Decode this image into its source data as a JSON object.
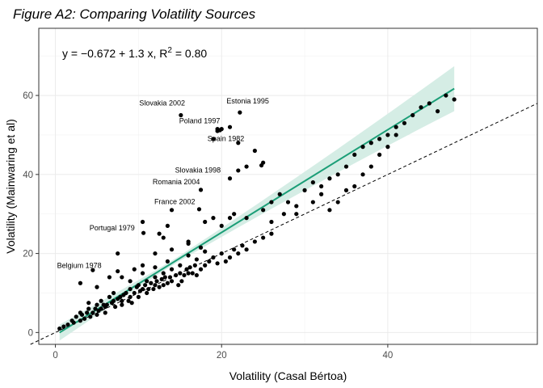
{
  "chart_data": {
    "type": "scatter",
    "title": "Figure A2: Comparing Volatility Sources",
    "xlabel": "Volatility (Casal Bértoa)",
    "ylabel": "Volatility (Mainwaring et al)",
    "xlim": [
      -2,
      58
    ],
    "ylim": [
      -3,
      77
    ],
    "xticks": [
      0,
      20,
      40
    ],
    "yticks": [
      0,
      20,
      40,
      60
    ],
    "grid": true,
    "equation": {
      "prefix": "y = −0.672 + 1.3 x, R",
      "sup": "2",
      "suffix": " = 0.80"
    },
    "regression": {
      "intercept": -0.672,
      "slope": 1.3,
      "x_range": [
        0.5,
        48
      ],
      "color": "#1b9e77",
      "band_color": "#d5ede5"
    },
    "reference_line": {
      "intercept": 0,
      "slope": 1,
      "style": "dashed",
      "color": "#000000"
    },
    "points": [
      [
        0.5,
        1
      ],
      [
        1,
        1.5
      ],
      [
        1.5,
        2
      ],
      [
        2,
        3
      ],
      [
        2.2,
        2.5
      ],
      [
        2.5,
        4
      ],
      [
        3,
        3
      ],
      [
        3,
        5
      ],
      [
        3.2,
        4.5
      ],
      [
        3.5,
        3.5
      ],
      [
        3.8,
        5
      ],
      [
        4,
        6
      ],
      [
        4,
        7.5
      ],
      [
        4.2,
        4
      ],
      [
        4.5,
        5
      ],
      [
        4.8,
        6
      ],
      [
        5,
        4.5
      ],
      [
        5,
        7
      ],
      [
        5.2,
        5.5
      ],
      [
        5.5,
        6
      ],
      [
        5.5,
        8
      ],
      [
        5.8,
        7
      ],
      [
        6,
        6.5
      ],
      [
        6,
        5
      ],
      [
        6.2,
        7
      ],
      [
        6.5,
        9
      ],
      [
        6.8,
        7.5
      ],
      [
        7,
        8
      ],
      [
        7,
        10
      ],
      [
        7.2,
        6.5
      ],
      [
        7.5,
        8.5
      ],
      [
        7.8,
        9
      ],
      [
        8,
        7
      ],
      [
        8,
        8
      ],
      [
        8.2,
        9.5
      ],
      [
        8.5,
        10
      ],
      [
        8.8,
        8
      ],
      [
        9,
        11
      ],
      [
        9,
        9
      ],
      [
        9.2,
        7.5
      ],
      [
        9.5,
        10
      ],
      [
        9.8,
        11.5
      ],
      [
        10,
        12
      ],
      [
        10,
        9
      ],
      [
        10.2,
        10.5
      ],
      [
        10.5,
        11
      ],
      [
        10.8,
        12
      ],
      [
        11,
        10
      ],
      [
        11,
        13
      ],
      [
        11.2,
        11
      ],
      [
        11.5,
        12.5
      ],
      [
        11.8,
        11
      ],
      [
        12,
        14
      ],
      [
        12,
        12
      ],
      [
        12.2,
        13
      ],
      [
        12.5,
        11.5
      ],
      [
        12.8,
        13.5
      ],
      [
        13,
        12
      ],
      [
        13,
        15
      ],
      [
        13.2,
        14
      ],
      [
        13.5,
        12.5
      ],
      [
        13.8,
        14
      ],
      [
        14,
        13
      ],
      [
        14,
        16
      ],
      [
        14.5,
        14.5
      ],
      [
        14.8,
        12
      ],
      [
        15,
        15
      ],
      [
        15.2,
        13
      ],
      [
        15.5,
        14.5
      ],
      [
        15.8,
        16
      ],
      [
        16,
        15
      ],
      [
        16.2,
        16.5
      ],
      [
        16.5,
        15
      ],
      [
        16.8,
        17
      ],
      [
        17,
        14.5
      ],
      [
        17.5,
        16
      ],
      [
        18,
        17
      ],
      [
        18.5,
        18
      ],
      [
        19,
        19
      ],
      [
        19.5,
        17.5
      ],
      [
        20,
        20
      ],
      [
        20.5,
        18
      ],
      [
        21,
        19
      ],
      [
        21.5,
        21
      ],
      [
        22,
        20
      ],
      [
        22.5,
        22
      ],
      [
        23,
        21
      ],
      [
        24,
        23
      ],
      [
        25,
        24
      ],
      [
        26,
        25
      ],
      [
        3,
        12.5
      ],
      [
        5,
        11.5
      ],
      [
        6.5,
        14
      ],
      [
        7.5,
        15.5
      ],
      [
        8,
        14
      ],
      [
        9,
        13
      ],
      [
        10.5,
        15
      ],
      [
        12,
        16.5
      ],
      [
        13.5,
        18
      ],
      [
        15,
        17
      ],
      [
        16,
        19.5
      ],
      [
        17,
        18.5
      ],
      [
        18,
        20.5
      ],
      [
        7.5,
        20
      ],
      [
        9.5,
        16
      ],
      [
        10.5,
        17
      ],
      [
        12,
        20
      ],
      [
        14,
        21
      ],
      [
        16,
        22.5
      ],
      [
        17.5,
        21.5
      ],
      [
        10.5,
        28
      ],
      [
        12.5,
        25
      ],
      [
        13,
        24
      ],
      [
        13.5,
        27
      ],
      [
        14,
        31
      ],
      [
        16,
        23
      ],
      [
        18,
        28
      ],
      [
        19,
        29
      ],
      [
        20,
        27
      ],
      [
        21,
        29
      ],
      [
        21.5,
        30
      ],
      [
        23,
        29
      ],
      [
        25,
        31
      ],
      [
        26,
        33
      ],
      [
        27,
        35
      ],
      [
        28,
        33
      ],
      [
        29,
        32
      ],
      [
        30,
        36
      ],
      [
        31,
        38
      ],
      [
        32,
        37
      ],
      [
        33,
        39
      ],
      [
        34,
        40
      ],
      [
        35,
        42
      ],
      [
        36,
        45
      ],
      [
        37,
        47
      ],
      [
        38,
        48
      ],
      [
        39,
        49
      ],
      [
        40,
        50
      ],
      [
        41,
        52
      ],
      [
        42,
        53
      ],
      [
        43,
        55
      ],
      [
        44,
        57
      ],
      [
        45,
        58
      ],
      [
        46,
        56
      ],
      [
        47,
        60
      ],
      [
        48,
        59
      ],
      [
        26,
        28
      ],
      [
        27.5,
        30
      ],
      [
        29,
        30
      ],
      [
        31,
        33
      ],
      [
        32,
        35
      ],
      [
        33,
        31
      ],
      [
        34,
        33
      ],
      [
        35,
        36
      ],
      [
        36,
        37
      ],
      [
        37,
        40
      ],
      [
        38,
        42
      ],
      [
        39,
        45
      ],
      [
        40,
        47
      ],
      [
        41,
        50
      ],
      [
        19.5,
        51
      ],
      [
        20,
        51.5
      ],
      [
        21,
        52
      ],
      [
        19,
        49
      ],
      [
        22,
        48
      ],
      [
        24,
        46
      ],
      [
        25,
        43
      ],
      [
        23,
        42
      ],
      [
        22,
        41
      ],
      [
        21,
        39
      ]
    ],
    "labelled_points": [
      {
        "label": "Slovakia 2002",
        "x": 15.1,
        "y": 55,
        "lx": 10.1,
        "ly": 57.5
      },
      {
        "label": "Estonia 1995",
        "x": 22.2,
        "y": 55.7,
        "lx": 20.6,
        "ly": 58
      },
      {
        "label": "Poland 1997",
        "x": 19.5,
        "y": 51.5,
        "lx": 14.9,
        "ly": 53
      },
      {
        "label": "Spain 1982",
        "x": 19.8,
        "y": 51.2,
        "lx": 18.3,
        "ly": 48.5
      },
      {
        "label": "Slovakia 1998",
        "x": 24.8,
        "y": 42.3,
        "lx": 14.4,
        "ly": 40.5
      },
      {
        "label": "Romania 2004",
        "x": 17.5,
        "y": 36.1,
        "lx": 11.7,
        "ly": 37.5
      },
      {
        "label": "France 2002",
        "x": 17.3,
        "y": 31.2,
        "lx": 11.9,
        "ly": 32.5
      },
      {
        "label": "Portugal 1979",
        "x": 10.6,
        "y": 25.2,
        "lx": 4.1,
        "ly": 25.8
      },
      {
        "label": "Belgium 1978",
        "x": 4.5,
        "y": 15.8,
        "lx": 0.2,
        "ly": 16.3
      }
    ]
  }
}
